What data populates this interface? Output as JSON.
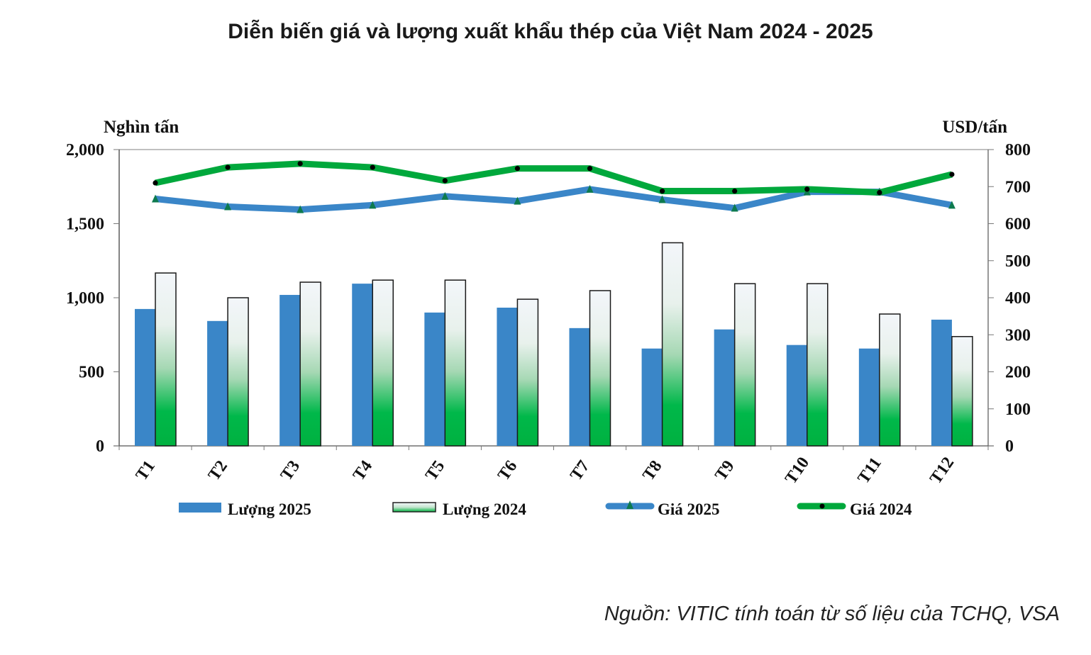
{
  "title": "Diễn biến giá và lượng xuất khẩu thép của Việt Nam 2024 - 2025",
  "source": "Nguồn: VITIC tính toán từ số liệu của TCHQ, VSA",
  "colors": {
    "luong_2025": "#3a86c8",
    "luong_2024_top": "#f3f6fa",
    "luong_2024_bottom": "#00b140",
    "gia_2025": "#3a86c8",
    "gia_2025_marker": "#0d7a4e",
    "gia_2024": "#00a83c",
    "gia_2024_marker": "#000000"
  },
  "chart_data": {
    "type": "bar",
    "title": "Diễn biến giá và lượng xuất khẩu thép của Việt Nam 2024 - 2025",
    "xlabel": "",
    "ylabel": "Nghìn tấn",
    "y2label": "USD/tấn",
    "ylim": [
      0,
      2000
    ],
    "y2lim": [
      0,
      800
    ],
    "yticks": [
      "0",
      "500",
      "1,000",
      "1,500",
      "2,000"
    ],
    "yticks_values": [
      0,
      500,
      1000,
      1500,
      2000
    ],
    "y2ticks": [
      "0",
      "100",
      "200",
      "300",
      "400",
      "500",
      "600",
      "700",
      "800"
    ],
    "y2ticks_values": [
      0,
      100,
      200,
      300,
      400,
      500,
      600,
      700,
      800
    ],
    "grid": false,
    "legend_position": "bottom",
    "categories": [
      "T1",
      "T2",
      "T3",
      "T4",
      "T5",
      "T6",
      "T7",
      "T8",
      "T9",
      "T10",
      "T11",
      "T12"
    ],
    "series": [
      {
        "name": "Lượng 2025",
        "type": "bar",
        "axis": "left",
        "values": [
          924,
          843,
          1019,
          1095,
          900,
          933,
          795,
          657,
          786,
          681,
          657,
          852
        ]
      },
      {
        "name": "Lượng 2024",
        "type": "bar",
        "axis": "left",
        "values": [
          1167,
          1000,
          1105,
          1119,
          1119,
          990,
          1048,
          1371,
          1095,
          1095,
          890,
          738
        ]
      },
      {
        "name": "Giá 2025",
        "type": "line",
        "axis": "right",
        "marker": "triangle",
        "values": [
          667,
          646,
          638,
          650,
          674,
          661,
          693,
          665,
          642,
          686,
          686,
          650
        ]
      },
      {
        "name": "Giá 2024",
        "type": "line",
        "axis": "right",
        "marker": "circle",
        "values": [
          710,
          752,
          762,
          752,
          716,
          749,
          749,
          688,
          688,
          693,
          684,
          733
        ]
      }
    ]
  }
}
